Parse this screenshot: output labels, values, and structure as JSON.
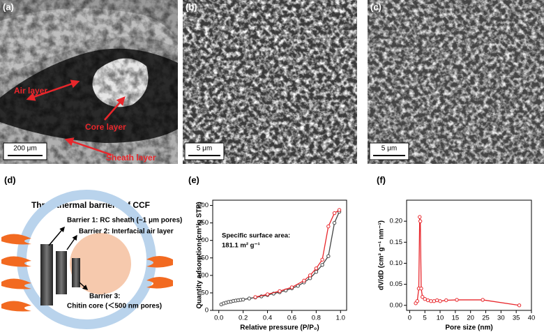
{
  "panels": {
    "a": {
      "label": "(a)",
      "air": "Air layer",
      "core": "Core layer",
      "sheath": "Sheath layer",
      "scale": "200 μm"
    },
    "b": {
      "label": "(b)",
      "scale": "5 μm"
    },
    "c": {
      "label": "(c)",
      "scale": "5 μm"
    },
    "d": {
      "label": "(d)",
      "title": "Three thermal barriers of CCF",
      "barrier1": "Barrier 1: RC sheath (~1 μm pores)",
      "barrier2": "Barrier 2: Interfacial air layer",
      "barrier3": "Barrier 3:",
      "core": "Chitin core (＜500 nm pores)"
    },
    "e": {
      "label": "(e)"
    },
    "f": {
      "label": "(f)"
    }
  },
  "chart_data": [
    {
      "type": "line",
      "x_label": "Relative pressure (P/P₀)",
      "y_label": "Quantity adsorption (cm³/g STP)",
      "annotation": [
        "Specific surface area:",
        "181.1 m² g⁻¹"
      ],
      "xlim": [
        -0.05,
        1.05
      ],
      "xticks": [
        {
          "value": 0,
          "label": "0.0"
        },
        0.2,
        0.4,
        0.6,
        0.8,
        {
          "value": 1,
          "label": "1.0"
        }
      ],
      "ylim": [
        0,
        315
      ],
      "yticks": [
        0,
        50,
        100,
        150,
        200,
        250,
        300
      ],
      "series": [
        {
          "color": "#444444",
          "x": [
            0.02,
            0.04,
            0.06,
            0.08,
            0.1,
            0.12,
            0.14,
            0.16,
            0.18,
            0.2,
            0.25,
            0.3,
            0.35,
            0.4,
            0.45,
            0.5,
            0.55,
            0.6,
            0.65,
            0.7,
            0.75,
            0.8,
            0.85,
            0.9,
            0.95,
            0.99
          ],
          "values": [
            17,
            20,
            22,
            24,
            25,
            27,
            28,
            29,
            30,
            31,
            34,
            37,
            40,
            44,
            48,
            52,
            57,
            63,
            70,
            80,
            92,
            110,
            130,
            155,
            250,
            282
          ]
        },
        {
          "color": "#e8262b",
          "x": [
            0.99,
            0.95,
            0.9,
            0.85,
            0.8,
            0.75,
            0.7,
            0.6,
            0.5,
            0.4,
            0.3
          ],
          "values": [
            287,
            278,
            240,
            145,
            120,
            100,
            85,
            66,
            55,
            46,
            38
          ]
        }
      ]
    },
    {
      "type": "line",
      "x_label": "Pore size (nm)",
      "y_label": "dV/dD (cm³ g⁻¹ nm⁻¹)",
      "xlim": [
        -1,
        40
      ],
      "xticks": [
        0,
        5,
        10,
        15,
        20,
        25,
        30,
        35,
        40
      ],
      "ylim": [
        -0.012,
        0.25
      ],
      "yticks": [
        {
          "value": 0,
          "label": "0.00"
        },
        {
          "value": 0.05,
          "label": "0.05"
        },
        {
          "value": 0.1,
          "label": "0.10"
        },
        {
          "value": 0.15,
          "label": "0.15"
        },
        {
          "value": 0.2,
          "label": "0.20"
        }
      ],
      "series": [
        {
          "color": "#e8262b",
          "x": [
            2,
            2.5,
            3,
            3.3,
            3.5,
            3.8,
            4.2,
            5,
            6,
            7,
            8,
            9,
            10,
            12,
            15.5,
            24,
            36
          ],
          "values": [
            0.005,
            0.01,
            0.04,
            0.21,
            0.2,
            0.04,
            0.02,
            0.015,
            0.012,
            0.01,
            0.01,
            0.012,
            0.01,
            0.012,
            0.013,
            0.013,
            0
          ]
        }
      ]
    }
  ]
}
